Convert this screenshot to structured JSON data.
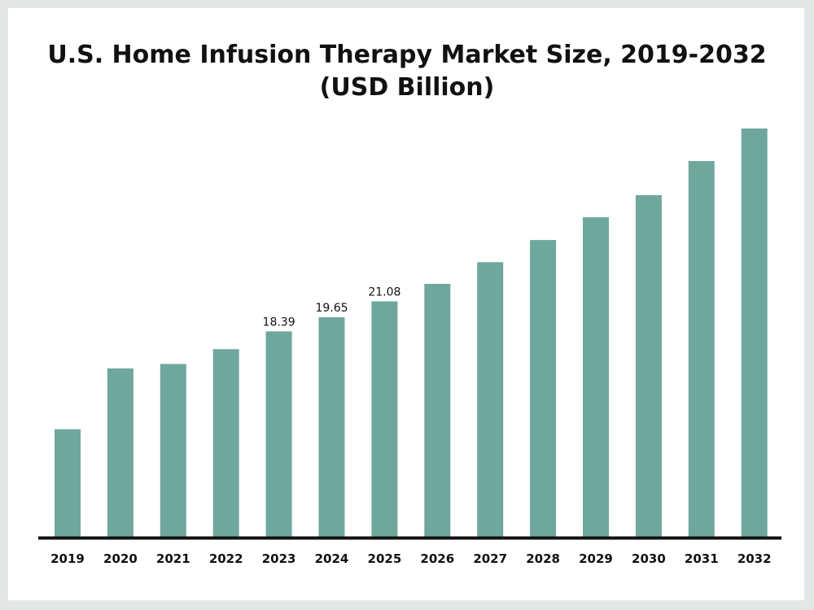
{
  "chart_data": {
    "type": "bar",
    "title": "U.S. Home Infusion Therapy Market Size, 2019-2032",
    "subtitle": "(USD Billion)",
    "xlabel": "",
    "ylabel": "",
    "categories": [
      "2019",
      "2020",
      "2021",
      "2022",
      "2023",
      "2024",
      "2025",
      "2026",
      "2027",
      "2028",
      "2029",
      "2030",
      "2031",
      "2032"
    ],
    "series": [
      {
        "values": [
          9.63,
          15.07,
          15.47,
          16.8,
          18.39,
          19.65,
          21.08,
          22.64,
          24.59,
          26.57,
          28.61,
          30.59,
          33.64,
          36.55
        ]
      }
    ],
    "data_labels": [
      "",
      "",
      "",
      "",
      "18.39",
      "19.65",
      "21.08",
      "",
      "",
      "",
      "",
      "",
      "",
      ""
    ],
    "ylim": [
      0,
      36.55
    ],
    "grid": false,
    "legend": "none",
    "colors": {
      "bar": "#6fa79c",
      "axis": "#111111",
      "text": "#111111",
      "page": "#e3e8e7",
      "card": "#ffffff"
    }
  }
}
